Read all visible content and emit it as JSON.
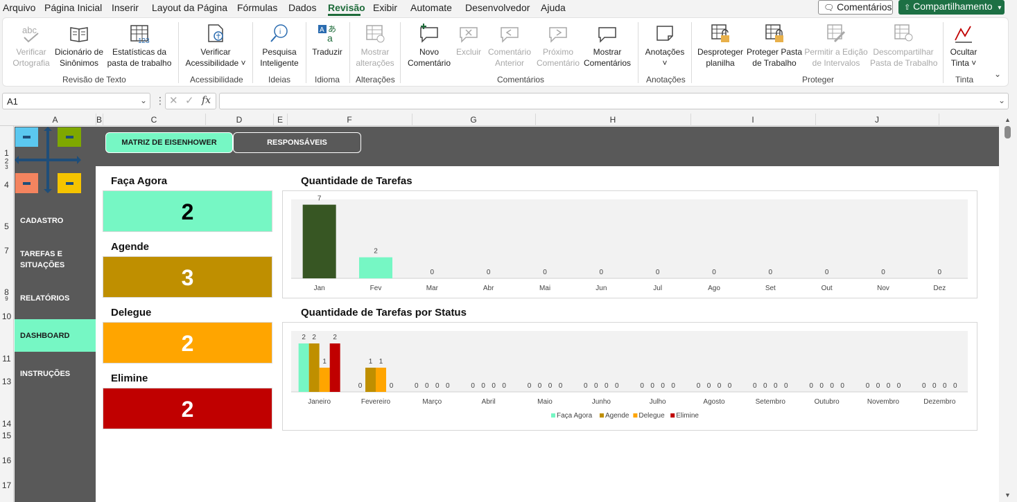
{
  "menu": {
    "items": [
      "Arquivo",
      "Página Inicial",
      "Inserir",
      "Layout da Página",
      "Fórmulas",
      "Dados",
      "Revisão",
      "Exibir",
      "Automate",
      "Desenvolvedor",
      "Ajuda"
    ],
    "active": "Revisão",
    "comments_label": "Comentários",
    "share_label": "Compartilhamento"
  },
  "ribbon": {
    "buttons": [
      {
        "line1": "Verificar",
        "line2": "Ortografia",
        "icon": "spelling-icon",
        "disabled": true
      },
      {
        "line1": "Dicionário de",
        "line2": "Sinônimos",
        "icon": "thesaurus-icon",
        "disabled": false
      },
      {
        "line1": "Estatísticas da",
        "line2": "pasta de trabalho",
        "icon": "workbook-stats-icon",
        "disabled": false
      },
      {
        "line1": "Verificar",
        "line2": "Acessibilidade ˅",
        "icon": "accessibility-icon",
        "disabled": false
      },
      {
        "line1": "Pesquisa",
        "line2": "Inteligente",
        "icon": "smart-lookup-icon",
        "disabled": false
      },
      {
        "line1": "Traduzir",
        "line2": "",
        "icon": "translate-icon",
        "disabled": false
      },
      {
        "line1": "Mostrar",
        "line2": "alterações",
        "icon": "show-changes-icon",
        "disabled": true
      },
      {
        "line1": "Novo",
        "line2": "Comentário",
        "icon": "new-comment-icon",
        "disabled": false
      },
      {
        "line1": "Excluir",
        "line2": "",
        "icon": "delete-comment-icon",
        "disabled": true
      },
      {
        "line1": "Comentário",
        "line2": "Anterior",
        "icon": "previous-comment-icon",
        "disabled": true
      },
      {
        "line1": "Próximo",
        "line2": "Comentário",
        "icon": "next-comment-icon",
        "disabled": true
      },
      {
        "line1": "Mostrar",
        "line2": "Comentários",
        "icon": "show-comments-icon",
        "disabled": false
      },
      {
        "line1": "Anotações",
        "line2": "˅",
        "icon": "notes-icon",
        "disabled": false
      },
      {
        "line1": "Desproteger",
        "line2": "planilha",
        "icon": "unprotect-sheet-icon",
        "disabled": false
      },
      {
        "line1": "Proteger Pasta",
        "line2": "de Trabalho",
        "icon": "protect-workbook-icon",
        "disabled": false
      },
      {
        "line1": "Permitir a Edição",
        "line2": "de Intervalos",
        "icon": "allow-edit-ranges-icon",
        "disabled": true
      },
      {
        "line1": "Descompartilhar",
        "line2": "Pasta de Trabalho",
        "icon": "unshare-workbook-icon",
        "disabled": true
      },
      {
        "line1": "Ocultar",
        "line2": "Tinta ˅",
        "icon": "hide-ink-icon",
        "disabled": false
      }
    ],
    "groups": [
      "Revisão de Texto",
      "Acessibilidade",
      "Ideias",
      "Idioma",
      "Alterações",
      "Comentários",
      "Anotações",
      "Proteger",
      "Tinta"
    ]
  },
  "formula_bar": {
    "cell_ref": "A1",
    "fx": "fx",
    "value": ""
  },
  "columns": [
    "A",
    "B",
    "C",
    "D",
    "E",
    "F",
    "G",
    "H",
    "I",
    "J"
  ],
  "rows": [
    "1",
    "2",
    "3",
    "4",
    "5",
    "7",
    "8",
    "9",
    "10",
    "11",
    "13",
    "14",
    "15",
    "16",
    "17"
  ],
  "tabs": {
    "matrix": "MATRIZ DE EISENHOWER",
    "responsaveis": "RESPONSÁVEIS"
  },
  "sidebar": {
    "items": [
      "CADASTRO",
      "TAREFAS E",
      "SITUAÇÕES",
      "RELATÓRIOS",
      "DASHBOARD",
      "INSTRUÇÕES"
    ],
    "active": "DASHBOARD"
  },
  "kpis": [
    {
      "title": "Faça Agora",
      "value": "2",
      "color": "#76f7c4",
      "text_color": "#000000"
    },
    {
      "title": "Agende",
      "value": "3",
      "color": "#bf8f00",
      "text_color": "#ffffff"
    },
    {
      "title": "Delegue",
      "value": "2",
      "color": "#ffa500",
      "text_color": "#ffffff"
    },
    {
      "title": "Elimine",
      "value": "2",
      "color": "#c00000",
      "text_color": "#ffffff"
    }
  ],
  "chart_data": [
    {
      "type": "bar",
      "title": "Quantidade de Tarefas",
      "categories": [
        "Jan",
        "Fev",
        "Mar",
        "Abr",
        "Mai",
        "Jun",
        "Jul",
        "Ago",
        "Set",
        "Out",
        "Nov",
        "Dez"
      ],
      "values": [
        7,
        2,
        0,
        0,
        0,
        0,
        0,
        0,
        0,
        0,
        0,
        0
      ],
      "colors": [
        "#375623",
        "#76f7c4"
      ],
      "ylim": [
        0,
        7.5
      ],
      "data_labels": true,
      "grid": false
    },
    {
      "type": "bar",
      "title": "Quantidade de Tarefas por Status",
      "categories": [
        "Janeiro",
        "Fevereiro",
        "Março",
        "Abril",
        "Maio",
        "Junho",
        "Julho",
        "Agosto",
        "Setembro",
        "Outubro",
        "Novembro",
        "Dezembro"
      ],
      "series": [
        {
          "name": "Faça Agora",
          "color": "#76f7c4",
          "values": [
            2,
            0,
            0,
            0,
            0,
            0,
            0,
            0,
            0,
            0,
            0,
            0
          ]
        },
        {
          "name": "Agende",
          "color": "#bf8f00",
          "values": [
            2,
            1,
            0,
            0,
            0,
            0,
            0,
            0,
            0,
            0,
            0,
            0
          ]
        },
        {
          "name": "Delegue",
          "color": "#ffa500",
          "values": [
            1,
            1,
            0,
            0,
            0,
            0,
            0,
            0,
            0,
            0,
            0,
            0
          ]
        },
        {
          "name": "Elimine",
          "color": "#c00000",
          "values": [
            2,
            0,
            0,
            0,
            0,
            0,
            0,
            0,
            0,
            0,
            0,
            0
          ]
        }
      ],
      "ylim": [
        0,
        2.1
      ],
      "legend": "bottom",
      "data_labels": true,
      "grid": false
    }
  ]
}
